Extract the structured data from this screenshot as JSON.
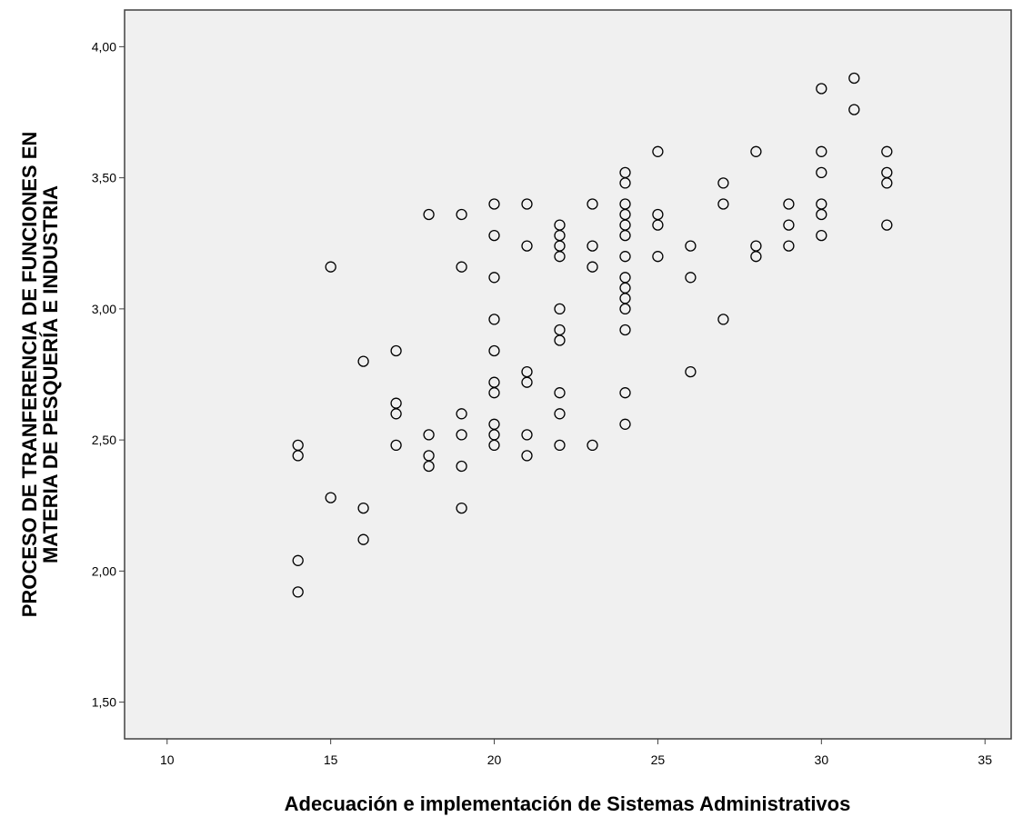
{
  "chart_data": {
    "type": "scatter",
    "title": "",
    "xlabel": "Adecuación e implementación de Sistemas Administrativos",
    "ylabel_lines": [
      "PROCESO DE TRANFERENCIA DE FUNCIONES EN",
      "MATERIA DE PESQUERÍA E INDUSTRIA"
    ],
    "xlim": [
      8.7,
      35.8
    ],
    "ylim": [
      1.36,
      4.14
    ],
    "xticks": [
      10,
      15,
      20,
      25,
      30,
      35
    ],
    "xtick_labels": [
      "10",
      "15",
      "20",
      "25",
      "30",
      "35"
    ],
    "yticks": [
      1.5,
      2.0,
      2.5,
      3.0,
      3.5,
      4.0
    ],
    "ytick_labels": [
      "1,50",
      "2,00",
      "2,50",
      "3,00",
      "3,50",
      "4,00"
    ],
    "grid": false,
    "legend": "none",
    "marker": "open-circle",
    "colors": {
      "plot_background": "#f0f0f0",
      "frame": "#404040",
      "marker_stroke": "#000000",
      "page_background": "#ffffff"
    },
    "points": [
      {
        "x": 14,
        "y": 2.48
      },
      {
        "x": 14,
        "y": 2.44
      },
      {
        "x": 14,
        "y": 2.04
      },
      {
        "x": 14,
        "y": 1.92
      },
      {
        "x": 15,
        "y": 3.16
      },
      {
        "x": 15,
        "y": 2.28
      },
      {
        "x": 16,
        "y": 2.8
      },
      {
        "x": 16,
        "y": 2.24
      },
      {
        "x": 16,
        "y": 2.12
      },
      {
        "x": 17,
        "y": 2.84
      },
      {
        "x": 17,
        "y": 2.64
      },
      {
        "x": 17,
        "y": 2.6
      },
      {
        "x": 17,
        "y": 2.48
      },
      {
        "x": 18,
        "y": 3.36
      },
      {
        "x": 18,
        "y": 2.52
      },
      {
        "x": 18,
        "y": 2.44
      },
      {
        "x": 18,
        "y": 2.4
      },
      {
        "x": 19,
        "y": 3.36
      },
      {
        "x": 19,
        "y": 3.16
      },
      {
        "x": 19,
        "y": 2.6
      },
      {
        "x": 19,
        "y": 2.52
      },
      {
        "x": 19,
        "y": 2.4
      },
      {
        "x": 19,
        "y": 2.24
      },
      {
        "x": 20,
        "y": 3.4
      },
      {
        "x": 20,
        "y": 3.28
      },
      {
        "x": 20,
        "y": 3.12
      },
      {
        "x": 20,
        "y": 2.96
      },
      {
        "x": 20,
        "y": 2.84
      },
      {
        "x": 20,
        "y": 2.72
      },
      {
        "x": 20,
        "y": 2.68
      },
      {
        "x": 20,
        "y": 2.56
      },
      {
        "x": 20,
        "y": 2.52
      },
      {
        "x": 20,
        "y": 2.48
      },
      {
        "x": 21,
        "y": 3.4
      },
      {
        "x": 21,
        "y": 3.24
      },
      {
        "x": 21,
        "y": 2.76
      },
      {
        "x": 21,
        "y": 2.72
      },
      {
        "x": 21,
        "y": 2.52
      },
      {
        "x": 21,
        "y": 2.44
      },
      {
        "x": 22,
        "y": 3.32
      },
      {
        "x": 22,
        "y": 3.28
      },
      {
        "x": 22,
        "y": 3.24
      },
      {
        "x": 22,
        "y": 3.2
      },
      {
        "x": 22,
        "y": 3.0
      },
      {
        "x": 22,
        "y": 2.92
      },
      {
        "x": 22,
        "y": 2.88
      },
      {
        "x": 22,
        "y": 2.68
      },
      {
        "x": 22,
        "y": 2.6
      },
      {
        "x": 22,
        "y": 2.48
      },
      {
        "x": 23,
        "y": 3.4
      },
      {
        "x": 23,
        "y": 3.24
      },
      {
        "x": 23,
        "y": 3.16
      },
      {
        "x": 23,
        "y": 2.48
      },
      {
        "x": 24,
        "y": 3.52
      },
      {
        "x": 24,
        "y": 3.48
      },
      {
        "x": 24,
        "y": 3.4
      },
      {
        "x": 24,
        "y": 3.36
      },
      {
        "x": 24,
        "y": 3.32
      },
      {
        "x": 24,
        "y": 3.28
      },
      {
        "x": 24,
        "y": 3.2
      },
      {
        "x": 24,
        "y": 3.12
      },
      {
        "x": 24,
        "y": 3.08
      },
      {
        "x": 24,
        "y": 3.04
      },
      {
        "x": 24,
        "y": 3.0
      },
      {
        "x": 24,
        "y": 2.92
      },
      {
        "x": 24,
        "y": 2.68
      },
      {
        "x": 24,
        "y": 2.56
      },
      {
        "x": 25,
        "y": 3.6
      },
      {
        "x": 25,
        "y": 3.36
      },
      {
        "x": 25,
        "y": 3.32
      },
      {
        "x": 25,
        "y": 3.2
      },
      {
        "x": 26,
        "y": 3.24
      },
      {
        "x": 26,
        "y": 3.12
      },
      {
        "x": 26,
        "y": 2.76
      },
      {
        "x": 27,
        "y": 3.48
      },
      {
        "x": 27,
        "y": 3.4
      },
      {
        "x": 27,
        "y": 2.96
      },
      {
        "x": 28,
        "y": 3.6
      },
      {
        "x": 28,
        "y": 3.24
      },
      {
        "x": 28,
        "y": 3.2
      },
      {
        "x": 29,
        "y": 3.4
      },
      {
        "x": 29,
        "y": 3.32
      },
      {
        "x": 29,
        "y": 3.24
      },
      {
        "x": 30,
        "y": 3.84
      },
      {
        "x": 30,
        "y": 3.6
      },
      {
        "x": 30,
        "y": 3.52
      },
      {
        "x": 30,
        "y": 3.4
      },
      {
        "x": 30,
        "y": 3.36
      },
      {
        "x": 30,
        "y": 3.28
      },
      {
        "x": 31,
        "y": 3.88
      },
      {
        "x": 31,
        "y": 3.76
      },
      {
        "x": 32,
        "y": 3.6
      },
      {
        "x": 32,
        "y": 3.52
      },
      {
        "x": 32,
        "y": 3.48
      },
      {
        "x": 32,
        "y": 3.32
      }
    ]
  }
}
